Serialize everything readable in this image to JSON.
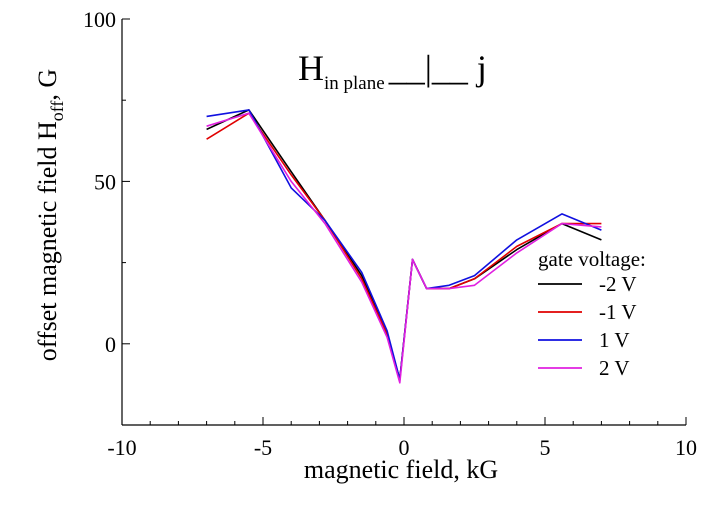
{
  "chart_data": {
    "type": "line",
    "title": "",
    "xlabel": "magnetic field, kG",
    "ylabel": {
      "main": "offset magnetic field H",
      "sub": "off",
      "unit": ", G"
    },
    "xlim": [
      -10,
      10
    ],
    "ylim": [
      -25,
      100
    ],
    "xticks": [
      -10,
      -5,
      0,
      5,
      10
    ],
    "yticks": [
      0,
      50,
      100
    ],
    "grid": false,
    "annotation": {
      "main": "H",
      "sub": "in plane",
      "symbol": "__|__",
      "tail": " j"
    },
    "legend": {
      "title": "gate voltage:",
      "placement": "lower-right"
    },
    "series": [
      {
        "name": "-2 V",
        "color": "#000000",
        "x": [
          -7.0,
          -5.5,
          -4.0,
          -2.8,
          -1.5,
          -0.6,
          -0.15,
          0.3,
          0.8,
          1.6,
          2.5,
          4.0,
          5.6,
          7.0
        ],
        "y": [
          66,
          72,
          53,
          38,
          21,
          3,
          -11,
          26,
          17,
          17,
          20,
          29,
          37,
          32
        ]
      },
      {
        "name": "-1 V",
        "color": "#e00000",
        "x": [
          -7.0,
          -5.5,
          -4.0,
          -2.8,
          -1.5,
          -0.6,
          -0.15,
          0.3,
          0.8,
          1.6,
          2.5,
          4.0,
          5.6,
          7.0
        ],
        "y": [
          63,
          71,
          52,
          38,
          20,
          3,
          -11,
          26,
          17,
          17,
          20,
          30,
          37,
          37
        ]
      },
      {
        "name": "1 V",
        "color": "#1010e0",
        "x": [
          -7.0,
          -5.5,
          -4.0,
          -2.8,
          -1.5,
          -0.6,
          -0.15,
          0.3,
          0.8,
          1.6,
          2.5,
          4.0,
          5.6,
          7.0
        ],
        "y": [
          70,
          72,
          48,
          38,
          22,
          4,
          -11,
          26,
          17,
          18,
          21,
          32,
          40,
          35
        ]
      },
      {
        "name": "2 V",
        "color": "#e020e0",
        "x": [
          -7.0,
          -5.5,
          -4.0,
          -2.8,
          -1.5,
          -0.6,
          -0.15,
          0.3,
          0.8,
          1.6,
          2.5,
          4.0,
          5.6,
          7.0
        ],
        "y": [
          67,
          71,
          50,
          37,
          19,
          2,
          -12,
          26,
          17,
          17,
          18,
          28,
          37,
          36
        ]
      }
    ]
  }
}
